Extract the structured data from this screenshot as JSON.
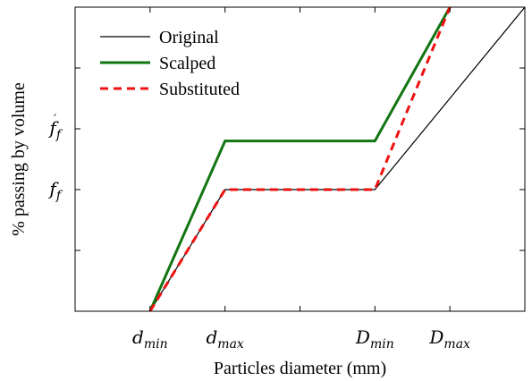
{
  "chart_data": {
    "type": "line",
    "xlabel": "Particles diameter (mm)",
    "ylabel": "% passing by volume",
    "xlim": [
      0,
      6
    ],
    "ylim": [
      0,
      5
    ],
    "x_ticks": [
      {
        "value": 1,
        "base": "d",
        "sub": "min"
      },
      {
        "value": 2,
        "base": "d",
        "sub": "max"
      },
      {
        "value": 4,
        "base": "D",
        "sub": "min"
      },
      {
        "value": 5,
        "base": "D",
        "sub": "max"
      }
    ],
    "x_minor_ticks": [
      3
    ],
    "y_ticks": [
      {
        "value": 2,
        "base": "f",
        "sub": "f",
        "prime": false
      },
      {
        "value": 3,
        "base": "f",
        "sub": "f",
        "prime": true
      }
    ],
    "y_minor_ticks": [
      1,
      4
    ],
    "legend_position": "top-left",
    "series": [
      {
        "name": "Original",
        "color": "#000000",
        "style": "solid-thin",
        "x": [
          1,
          2,
          4,
          6
        ],
        "y": [
          0,
          2,
          2,
          5
        ]
      },
      {
        "name": "Scalped",
        "color": "#127512",
        "style": "solid-thick",
        "x": [
          1,
          2,
          4,
          5
        ],
        "y": [
          0,
          2.8,
          2.8,
          5
        ]
      },
      {
        "name": "Substituted",
        "color": "#ee1111",
        "style": "dashed",
        "x": [
          1,
          2,
          4,
          5
        ],
        "y": [
          0,
          2,
          2,
          5
        ]
      }
    ]
  }
}
